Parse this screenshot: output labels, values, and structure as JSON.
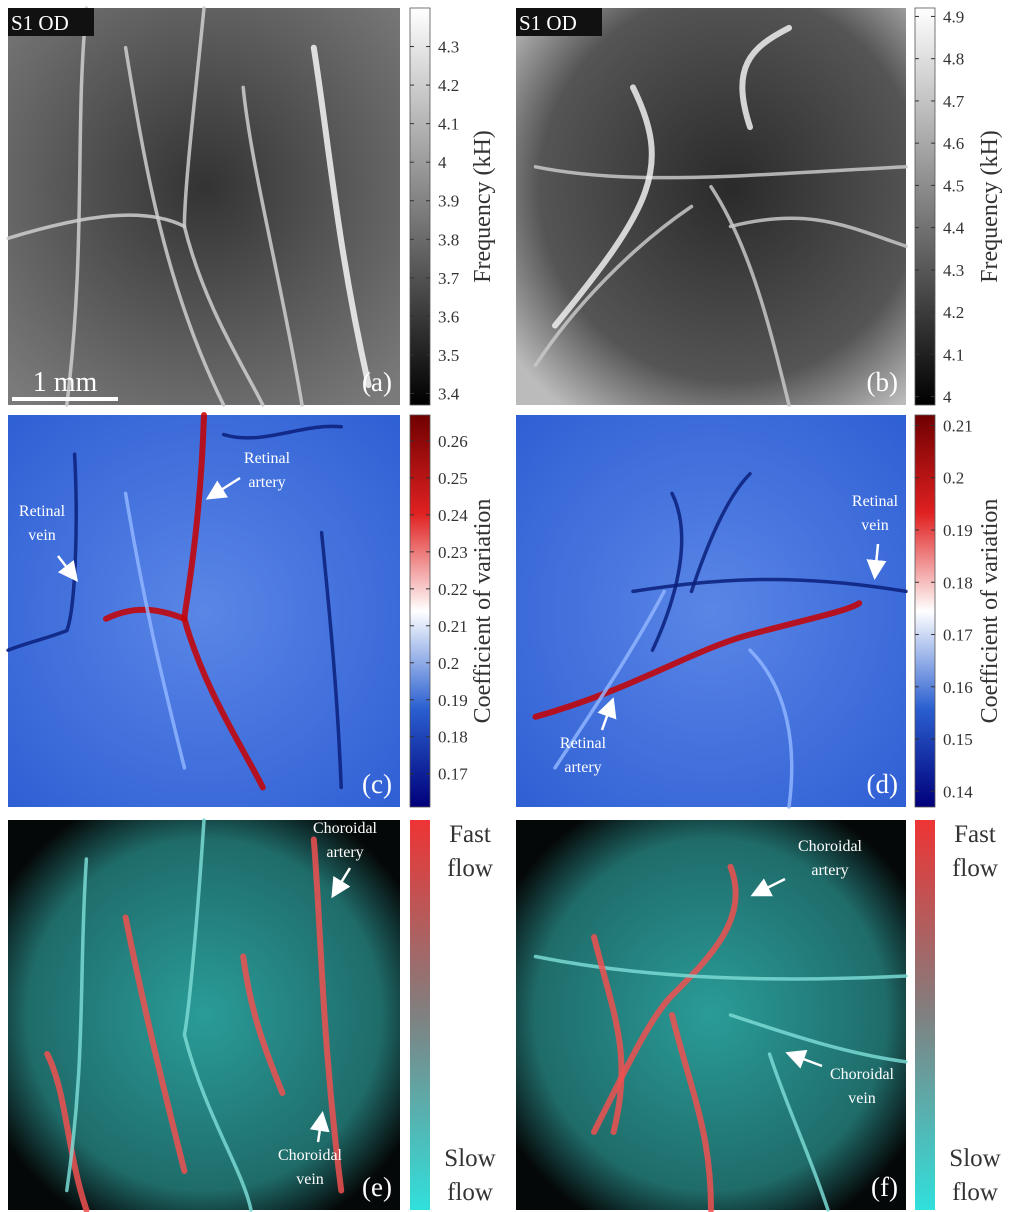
{
  "panels": [
    {
      "tag": "S1 OD",
      "scale_bar": "1 mm",
      "label": "(a)",
      "colorbar": {
        "colormap": "gray",
        "lim": [
          3.37,
          4.4
        ],
        "ticks": [
          3.4,
          3.5,
          3.6,
          3.7,
          3.8,
          3.9,
          4,
          4.1,
          4.2,
          4.3
        ],
        "label": "Frequency (kH)"
      },
      "annotations": []
    },
    {
      "tag": "S1 OD",
      "label": "(b)",
      "colorbar": {
        "colormap": "gray",
        "lim": [
          3.98,
          4.92
        ],
        "ticks": [
          4,
          4.1,
          4.2,
          4.3,
          4.4,
          4.5,
          4.6,
          4.7,
          4.8,
          4.9
        ],
        "label": "Frequency (kH)"
      },
      "annotations": []
    },
    {
      "label": "(c)",
      "colorbar": {
        "colormap": "cov",
        "lim": [
          0.161,
          0.267
        ],
        "ticks": [
          0.17,
          0.18,
          0.19,
          0.2,
          0.21,
          0.22,
          0.23,
          0.24,
          0.25,
          0.26
        ],
        "label": "Coefficient of variation"
      },
      "annotations": [
        {
          "lines": [
            "Retinal",
            "artery"
          ]
        },
        {
          "lines": [
            "Retinal",
            "vein"
          ]
        }
      ]
    },
    {
      "label": "(d)",
      "colorbar": {
        "colormap": "cov",
        "lim": [
          0.137,
          0.212
        ],
        "ticks": [
          0.14,
          0.15,
          0.16,
          0.17,
          0.18,
          0.19,
          0.2,
          0.21
        ],
        "label": "Coefficient of variation"
      },
      "annotations": [
        {
          "lines": [
            "Retinal",
            "vein"
          ]
        },
        {
          "lines": [
            "Retinal",
            "artery"
          ]
        }
      ]
    },
    {
      "label": "(e)",
      "colorbar": {
        "colormap": "flow",
        "top_label": [
          "Fast",
          "flow"
        ],
        "bottom_label": [
          "Slow",
          "flow"
        ]
      },
      "annotations": [
        {
          "lines": [
            "Choroidal",
            "artery"
          ]
        },
        {
          "lines": [
            "Choroidal",
            "vein"
          ]
        }
      ]
    },
    {
      "label": "(f)",
      "colorbar": {
        "colormap": "flow",
        "top_label": [
          "Fast",
          "flow"
        ],
        "bottom_label": [
          "Slow",
          "flow"
        ]
      },
      "annotations": [
        {
          "lines": [
            "Choroidal",
            "artery"
          ]
        },
        {
          "lines": [
            "Choroidal",
            "vein"
          ]
        }
      ]
    }
  ]
}
